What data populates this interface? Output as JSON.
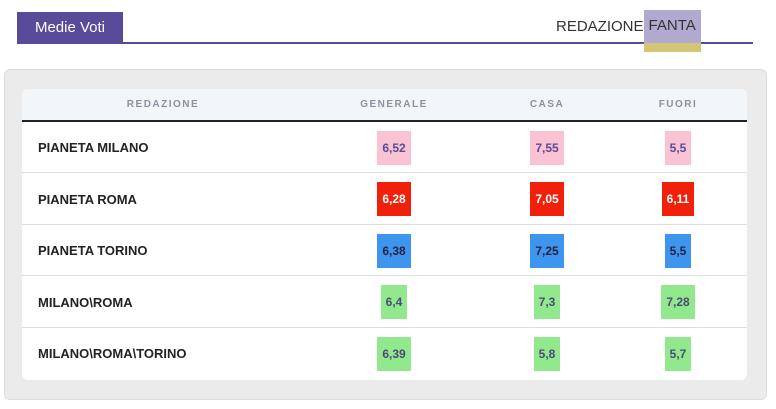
{
  "header": {
    "title": "Medie Voti",
    "tabs": [
      {
        "label": "REDAZIONE"
      },
      {
        "label": "FANTA"
      }
    ]
  },
  "table": {
    "columns": [
      "REDAZIONE",
      "GENERALE",
      "CASA",
      "FUORI"
    ],
    "rows": [
      {
        "name": "PIANETA MILANO",
        "generale": "6,52",
        "casa": "7,55",
        "fuori": "5,5",
        "color": "pink"
      },
      {
        "name": "PIANETA ROMA",
        "generale": "6,28",
        "casa": "7,05",
        "fuori": "6,11",
        "color": "red"
      },
      {
        "name": "PIANETA TORINO",
        "generale": "6,38",
        "casa": "7,25",
        "fuori": "5,5",
        "color": "blue"
      },
      {
        "name": "MILANO\\ROMA",
        "generale": "6,4",
        "casa": "7,3",
        "fuori": "7,28",
        "color": "green"
      },
      {
        "name": "MILANO\\ROMA\\TORINO",
        "generale": "6,39",
        "casa": "5,8",
        "fuori": "5,7",
        "color": "green"
      }
    ]
  },
  "colors": {
    "accent": "#5a4a9a",
    "tab_active_bg": "#b1a9cf",
    "tab_active_underline": "#d2c573",
    "pink": "#f9c3d3",
    "red": "#f0200a",
    "blue": "#3e95ee",
    "green": "#92e88c"
  }
}
